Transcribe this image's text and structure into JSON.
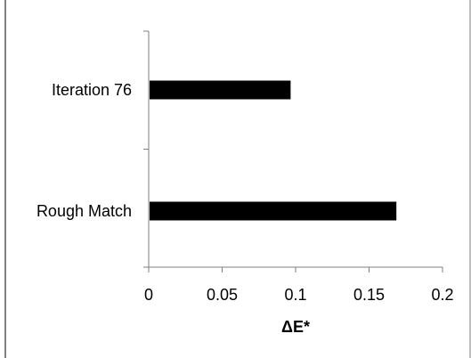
{
  "chart_data": {
    "type": "bar",
    "orientation": "horizontal",
    "categories": [
      "Rough Match",
      "Iteration 76"
    ],
    "values": [
      0.168,
      0.096
    ],
    "xlabel": "ΔE*",
    "ylabel": "",
    "xlim": [
      0,
      0.2
    ],
    "xticks": [
      0,
      0.05,
      0.1,
      0.15,
      0.2
    ],
    "xtick_labels": [
      "0",
      "0.05",
      "0.1",
      "0.15",
      "0.2"
    ],
    "grid": false,
    "legend": "none",
    "bar_color": "#000000"
  }
}
